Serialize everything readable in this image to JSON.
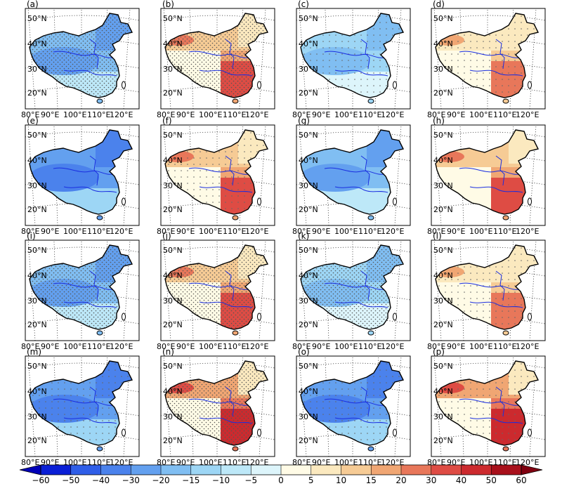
{
  "panels": [
    {
      "label": "(a)",
      "palette": "cool",
      "level": 3,
      "stipple": "dense"
    },
    {
      "label": "(b)",
      "palette": "warm",
      "level": 3,
      "stipple": "dense"
    },
    {
      "label": "(c)",
      "palette": "cool",
      "level": 2,
      "stipple": "sparse"
    },
    {
      "label": "(d)",
      "palette": "warm",
      "level": 2,
      "stipple": "sparse"
    },
    {
      "label": "(e)",
      "palette": "cool",
      "level": 4,
      "stipple": "none"
    },
    {
      "label": "(f)",
      "palette": "warm",
      "level": 3,
      "stipple": "sparse"
    },
    {
      "label": "(g)",
      "palette": "cool",
      "level": 3,
      "stipple": "none"
    },
    {
      "label": "(h)",
      "palette": "warm",
      "level": 3,
      "stipple": "none"
    },
    {
      "label": "(i)",
      "palette": "cool",
      "level": 3,
      "stipple": "dense"
    },
    {
      "label": "(j)",
      "palette": "warm",
      "level": 3,
      "stipple": "dense"
    },
    {
      "label": "(k)",
      "palette": "cool",
      "level": 2,
      "stipple": "dense"
    },
    {
      "label": "(l)",
      "palette": "warm",
      "level": 2,
      "stipple": "sparse"
    },
    {
      "label": "(m)",
      "palette": "cool",
      "level": 4,
      "stipple": "sparse"
    },
    {
      "label": "(n)",
      "palette": "warm",
      "level": 4,
      "stipple": "dense"
    },
    {
      "label": "(o)",
      "palette": "cool",
      "level": 4,
      "stipple": "sparse"
    },
    {
      "label": "(p)",
      "palette": "warm",
      "level": 4,
      "stipple": "sparse"
    }
  ],
  "lat_labels": [
    "50°N",
    "40°N",
    "30°N",
    "20°N"
  ],
  "lon_labels": [
    "80°E",
    "90°E",
    "100°E",
    "110°E",
    "120°E"
  ],
  "colorbar": {
    "ticks": [
      "−60",
      "−50",
      "−40",
      "−30",
      "−20",
      "−15",
      "−10",
      "−5",
      "0",
      "5",
      "10",
      "15",
      "20",
      "30",
      "40",
      "50",
      "60"
    ],
    "colors": [
      "#0a1fd6",
      "#2f5ee8",
      "#4b82ec",
      "#63a0ef",
      "#80bef2",
      "#9dd6f5",
      "#bde8f8",
      "#ddf5fb",
      "#fffbe6",
      "#fbe9bf",
      "#f6cb95",
      "#f0a673",
      "#e8775a",
      "#de4c44",
      "#cc2a2e",
      "#a8101b"
    ],
    "under_color": "#0000b8",
    "over_color": "#800010"
  }
}
